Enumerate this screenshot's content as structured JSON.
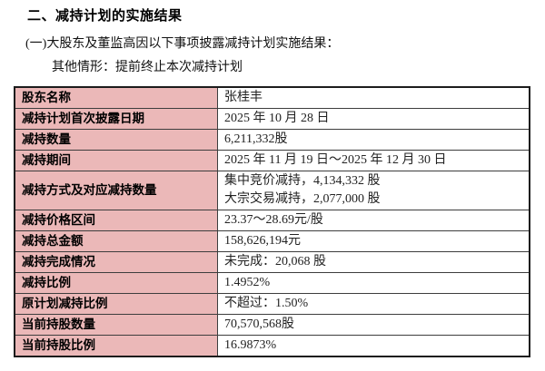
{
  "page": {
    "heading": "二、减持计划的实施结果",
    "subheading": "(一)大股东及董监高因以下事项披露减持计划实施结果：",
    "note": "其他情形：提前终止本次减持计划"
  },
  "table": {
    "label_bg": "#ebb8b8",
    "border_color": "#1c1c1c",
    "rows": [
      {
        "label": "股东名称",
        "value": "张桂丰"
      },
      {
        "label": "减持计划首次披露日期",
        "value": "2025 年 10 月 28 日"
      },
      {
        "label": "减持数量",
        "value": "6,211,332股"
      },
      {
        "label": "减持期间",
        "value": "2025 年 11 月 19 日～2025 年 12 月 30 日"
      },
      {
        "label": "减持方式及对应减持数量",
        "value": "集中竞价减持，4,134,332 股",
        "value2": "大宗交易减持，2,077,000 股"
      },
      {
        "label": "减持价格区间",
        "value": "23.37～28.69元/股"
      },
      {
        "label": "减持总金额",
        "value": "158,626,194元"
      },
      {
        "label": "减持完成情况",
        "value": "未完成：20,068 股"
      },
      {
        "label": "减持比例",
        "value": "1.4952%"
      },
      {
        "label": "原计划减持比例",
        "value": "不超过：1.50%"
      },
      {
        "label": "当前持股数量",
        "value": "70,570,568股"
      },
      {
        "label": "当前持股比例",
        "value": "16.9873%"
      }
    ]
  }
}
